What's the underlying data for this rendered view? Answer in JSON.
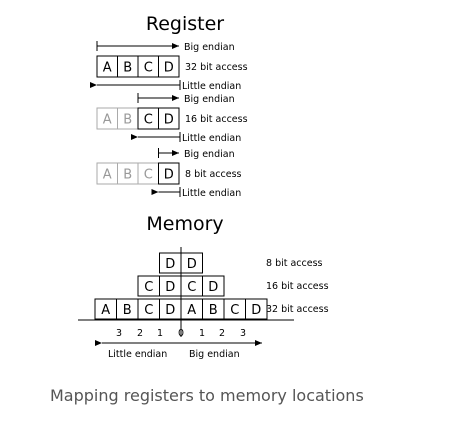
{
  "register": {
    "title": "Register",
    "rows": [
      {
        "cells": [
          "A",
          "B",
          "C",
          "D"
        ],
        "faded": [],
        "access": "32 bit access",
        "big": "Big endian",
        "little": "Little endian"
      },
      {
        "cells": [
          "A",
          "B",
          "C",
          "D"
        ],
        "faded": [
          "A",
          "B"
        ],
        "access": "16 bit access",
        "big": "Big endian",
        "little": "Little endian"
      },
      {
        "cells": [
          "A",
          "B",
          "C",
          "D"
        ],
        "faded": [
          "A",
          "B",
          "C"
        ],
        "access": "8 bit access",
        "big": "Big endian",
        "little": "Little endian"
      }
    ]
  },
  "memory": {
    "title": "Memory",
    "rows": [
      {
        "cells": [
          "D",
          "D"
        ],
        "access": "8 bit access"
      },
      {
        "cells": [
          "C",
          "D",
          "C",
          "D"
        ],
        "access": "16 bit access"
      },
      {
        "cells": [
          "A",
          "B",
          "C",
          "D",
          "A",
          "B",
          "C",
          "D"
        ],
        "access": "32 bit access"
      }
    ],
    "offsets": [
      "3",
      "2",
      "1",
      "0",
      "1",
      "2",
      "3"
    ],
    "little": "Little endian",
    "big": "Big endian"
  },
  "caption": "Mapping registers to memory locations",
  "colors": {
    "text": "#000000",
    "faded": "#999999",
    "caption": "#555555"
  }
}
